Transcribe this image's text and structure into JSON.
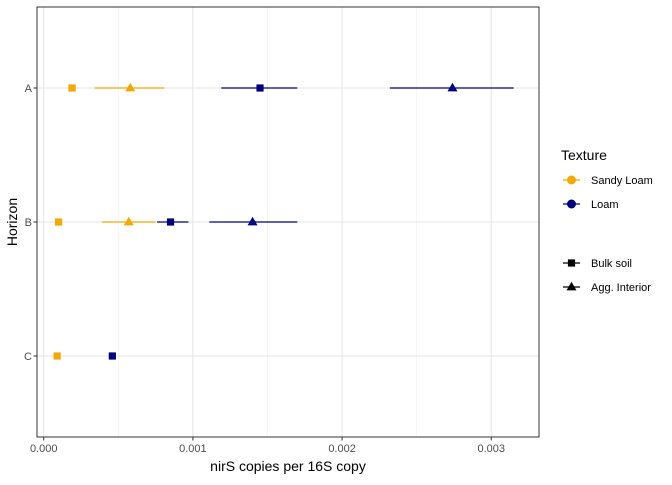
{
  "chart_data": {
    "type": "scatter",
    "xlabel": "nirS copies per 16S copy",
    "ylabel": "Horizon",
    "xlim": [
      -4.5e-05,
      0.00332
    ],
    "x_ticks": [
      0.0,
      0.001,
      0.002,
      0.003
    ],
    "x_tick_labels": [
      "0.000",
      "0.001",
      "0.002",
      "0.003"
    ],
    "categories": [
      "A",
      "B",
      "C"
    ],
    "grid": true,
    "legend_position": "right",
    "colors": {
      "Sandy Loam": "#F5A800",
      "Loam": "#000080"
    },
    "legend": {
      "color_title": "Texture",
      "color_entries": [
        "Sandy Loam",
        "Loam"
      ],
      "shape_entries": [
        "Bulk soil",
        "Agg. Interior"
      ]
    },
    "series": [
      {
        "texture": "Sandy Loam",
        "sample": "Bulk soil",
        "points": [
          {
            "horizon": "A",
            "x": 0.00019
          },
          {
            "horizon": "B",
            "x": 0.0001
          },
          {
            "horizon": "C",
            "x": 9e-05
          }
        ]
      },
      {
        "texture": "Sandy Loam",
        "sample": "Agg. Interior",
        "points": [
          {
            "horizon": "A",
            "x": 0.00058,
            "xmin": 0.00034,
            "xmax": 0.00081
          },
          {
            "horizon": "B",
            "x": 0.00057,
            "xmin": 0.00039,
            "xmax": 0.00075
          }
        ]
      },
      {
        "texture": "Loam",
        "sample": "Bulk soil",
        "points": [
          {
            "horizon": "A",
            "x": 0.00145,
            "xmin": 0.00119,
            "xmax": 0.0017
          },
          {
            "horizon": "B",
            "x": 0.00085,
            "xmin": 0.00076,
            "xmax": 0.00097
          },
          {
            "horizon": "C",
            "x": 0.00046
          }
        ]
      },
      {
        "texture": "Loam",
        "sample": "Agg. Interior",
        "points": [
          {
            "horizon": "A",
            "x": 0.00274,
            "xmin": 0.00232,
            "xmax": 0.00315
          },
          {
            "horizon": "B",
            "x": 0.0014,
            "xmin": 0.00111,
            "xmax": 0.0017
          }
        ]
      }
    ]
  }
}
